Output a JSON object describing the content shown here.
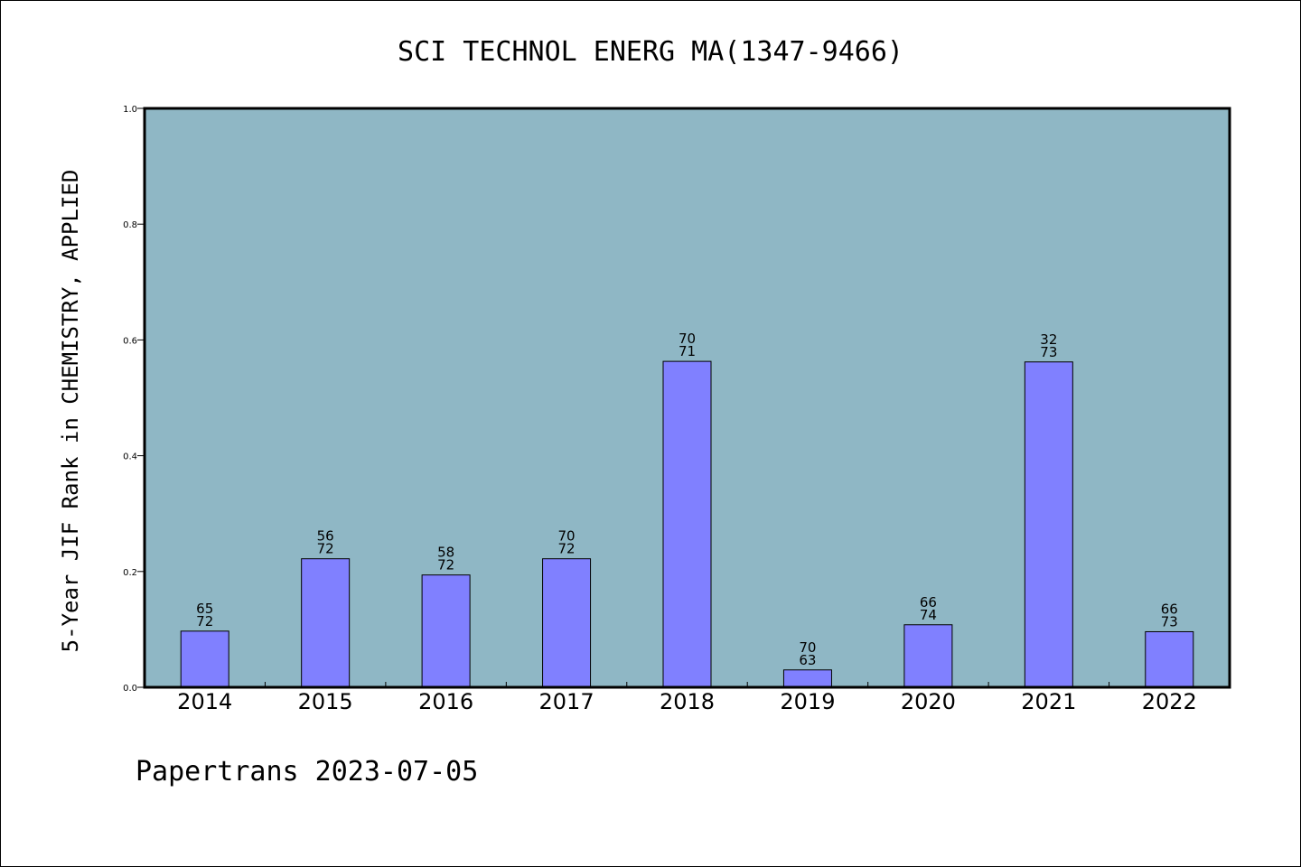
{
  "chart_data": {
    "type": "bar",
    "title": "SCI TECHNOL ENERG MA(1347-9466)",
    "ylabel": "5-Year JIF Rank in CHEMISTRY, APPLIED",
    "xlabel": "",
    "ylim": [
      0,
      1.0
    ],
    "yticks": [
      "0.0",
      "0.2",
      "0.4",
      "0.6",
      "0.8",
      "1.0"
    ],
    "categories": [
      "2014",
      "2015",
      "2016",
      "2017",
      "2018",
      "2019",
      "2020",
      "2021",
      "2022"
    ],
    "values": [
      0.097,
      0.222,
      0.194,
      0.222,
      0.563,
      0.03,
      0.108,
      0.562,
      0.096
    ],
    "labels_top": [
      "65",
      "56",
      "58",
      "70",
      "70",
      "70",
      "66",
      "32",
      "66"
    ],
    "labels_bottom": [
      "72",
      "72",
      "72",
      "72",
      "71",
      "63",
      "74",
      "73",
      "73"
    ],
    "grid": false,
    "plot_bg": "#8fb7c5",
    "bar_color": "#8080ff"
  },
  "footer": "Papertrans 2023-07-05"
}
